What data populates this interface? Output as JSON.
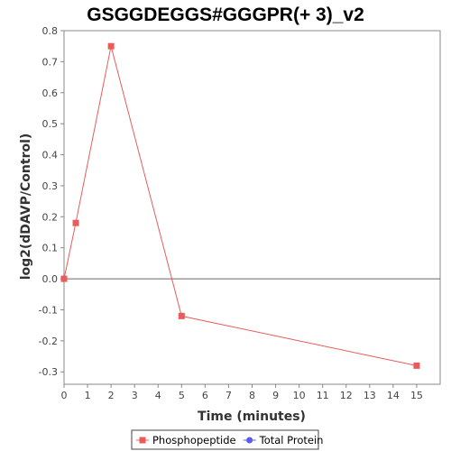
{
  "chart_data": {
    "type": "line",
    "title": "GSGGDEGGS#GGGPR(+ 3)_v2",
    "xlabel": "Time (minutes)",
    "ylabel": "log2(dDAVP/Control)",
    "xlim": [
      0,
      16
    ],
    "ylim": [
      -0.34,
      0.8
    ],
    "xticks": [
      0,
      1,
      2,
      3,
      4,
      5,
      6,
      7,
      8,
      9,
      10,
      11,
      12,
      13,
      14,
      15
    ],
    "yticks": [
      -0.3,
      -0.2,
      -0.1,
      0.0,
      0.1,
      0.2,
      0.3,
      0.4,
      0.5,
      0.6,
      0.7,
      0.8
    ],
    "ytick_labels": [
      "-0.3",
      "-0.2",
      "-0.1",
      "0.0",
      "0.1",
      "0.2",
      "0.3",
      "0.4",
      "0.5",
      "0.6",
      "0.7",
      "0.8"
    ],
    "grid": false,
    "zero_line": true,
    "legend_position": "bottom-center",
    "series": [
      {
        "name": "Phosphopeptide",
        "color": "#e85c5c",
        "marker": "square",
        "x": [
          0,
          0.5,
          2,
          5,
          15
        ],
        "y": [
          0.0,
          0.18,
          0.75,
          -0.12,
          -0.28
        ]
      },
      {
        "name": "Total Protein",
        "color": "#5b5bef",
        "marker": "circle",
        "x": [],
        "y": []
      }
    ]
  }
}
